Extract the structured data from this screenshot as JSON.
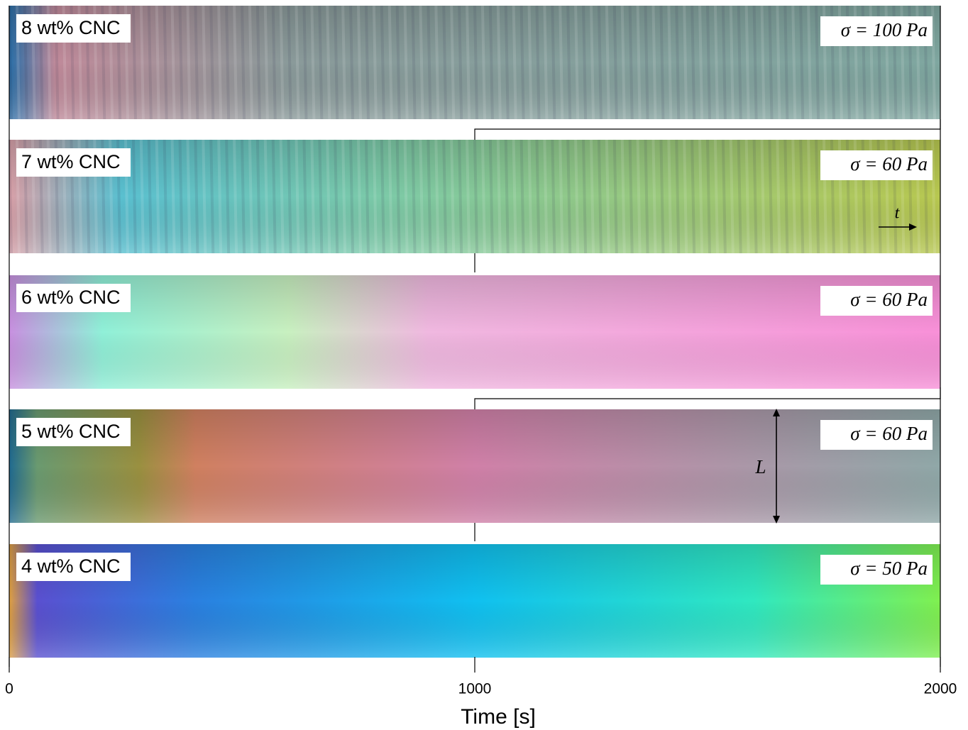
{
  "chart_data": {
    "type": "kymograph",
    "xlabel": "Time [s]",
    "xlim": [
      0,
      2000
    ],
    "xticks": [
      0,
      1000,
      2000
    ],
    "panels": [
      {
        "label": "8 wt% CNC",
        "stress": "σ = 100 Pa"
      },
      {
        "label": "7 wt% CNC",
        "stress": "σ = 60 Pa"
      },
      {
        "label": "6 wt% CNC",
        "stress": "σ = 60 Pa"
      },
      {
        "label": "5 wt% CNC",
        "stress": "σ = 60 Pa"
      },
      {
        "label": "4 wt% CNC",
        "stress": "σ = 50 Pa"
      }
    ],
    "arrow_labels": [
      "t",
      "L"
    ]
  }
}
